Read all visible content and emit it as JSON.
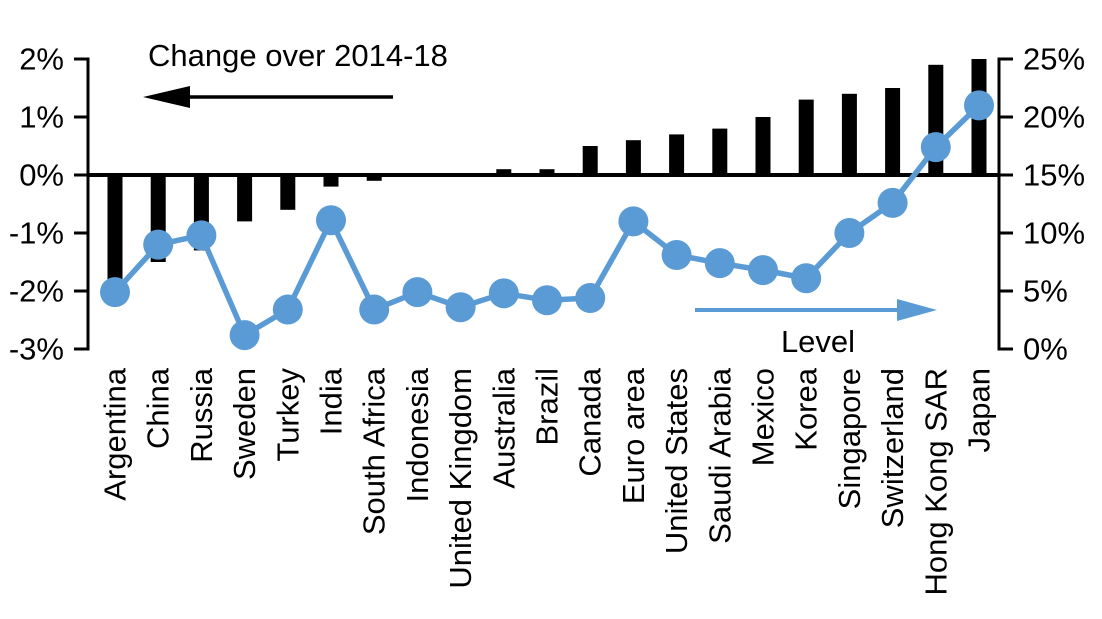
{
  "chart_data": {
    "type": "bar",
    "subtype": "combo-bar-line-dual-axis",
    "categories": [
      "Argentina",
      "China",
      "Russia",
      "Sweden",
      "Turkey",
      "India",
      "South Africa",
      "Indonesia",
      "United Kingdom",
      "Australia",
      "Brazil",
      "Canada",
      "Euro area",
      "United States",
      "Saudi Arabia",
      "Mexico",
      "Korea",
      "Singapore",
      "Switzerland",
      "Hong Kong SAR",
      "Japan"
    ],
    "series": [
      {
        "name": "Change over 2014-18",
        "type": "bar",
        "axis": "left",
        "color": "#000000",
        "values": [
          -1.8,
          -1.5,
          -1.3,
          -0.8,
          -0.6,
          -0.2,
          -0.1,
          0,
          0,
          0.1,
          0.1,
          0.5,
          0.6,
          0.7,
          0.8,
          1.0,
          1.3,
          1.4,
          1.5,
          1.9,
          2.0
        ]
      },
      {
        "name": "Level",
        "type": "line",
        "axis": "right",
        "color": "#5b9bd5",
        "values": [
          4.9,
          9.0,
          9.8,
          1.2,
          3.4,
          11.1,
          3.4,
          4.9,
          3.6,
          4.8,
          4.2,
          4.4,
          11.0,
          8.1,
          7.4,
          6.8,
          6.1,
          10.0,
          12.6,
          17.4,
          21.0
        ]
      }
    ],
    "left_axis": {
      "min": -3,
      "max": 2,
      "tick_values": [
        2,
        1,
        0,
        -1,
        -2,
        -3
      ],
      "tick_labels": [
        "2%",
        "1%",
        "0%",
        "-1%",
        "-2%",
        "-3%"
      ]
    },
    "right_axis": {
      "min": 0,
      "max": 25,
      "tick_values": [
        25,
        20,
        15,
        10,
        5,
        0
      ],
      "tick_labels": [
        "25%",
        "20%",
        "15%",
        "10%",
        "5%",
        "0%"
      ]
    },
    "annotations": {
      "bar_series_label": "Change over 2014-18",
      "bar_series_arrow_direction": "left",
      "line_series_label": "Level",
      "line_series_arrow_direction": "right"
    },
    "grid": false,
    "legend_position": "in-plot text annotations with arrows"
  },
  "colors": {
    "bar": "#000000",
    "line": "#5b9bd5",
    "text": "#000000",
    "background": "#ffffff"
  }
}
